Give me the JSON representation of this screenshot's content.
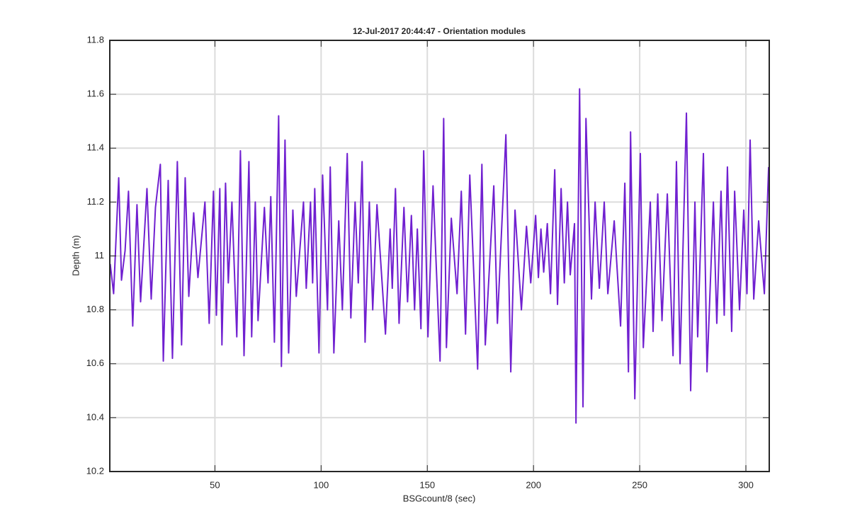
{
  "chart_data": {
    "type": "line",
    "title": "12-Jul-2017 20:44:47 - Orientation modules",
    "x_label": "BSGcount/8 (sec)",
    "y_label": "Depth (m)",
    "color": "#7020d0",
    "grid": true,
    "xlim": [
      0.5,
      311
    ],
    "ylim": [
      10.2,
      11.8
    ],
    "xticks": [
      50,
      100,
      150,
      200,
      250,
      300
    ],
    "yticks": [
      10.2,
      10.4,
      10.6,
      10.8,
      11,
      11.2,
      11.4,
      11.6,
      11.8
    ],
    "x": [
      0.7,
      2.3,
      4.7,
      6,
      7.7,
      9.3,
      11.3,
      13.3,
      15,
      18,
      20,
      22,
      24.3,
      25.7,
      28,
      30,
      32.3,
      34.3,
      36,
      37.7,
      40,
      42,
      45.3,
      47.3,
      49.3,
      50.7,
      52.3,
      53.3,
      55,
      56.3,
      58,
      60.3,
      62,
      63.7,
      66,
      67.3,
      69,
      70.3,
      73.3,
      75,
      76.3,
      78,
      80,
      81.3,
      83,
      84.7,
      86.7,
      88.3,
      91.7,
      93,
      95,
      96,
      97,
      99,
      100.7,
      103,
      104.3,
      106,
      108.3,
      110,
      112.3,
      114,
      116,
      117.5,
      119.3,
      120.7,
      122.7,
      124.3,
      126.3,
      130.3,
      132.5,
      133.5,
      135,
      136.7,
      139,
      140.7,
      142.5,
      144,
      145.3,
      147,
      148.3,
      150.3,
      152.7,
      156,
      157.7,
      159,
      161.3,
      164,
      166,
      168,
      170,
      173.7,
      175.7,
      177.3,
      181.3,
      183,
      187,
      189.3,
      191.3,
      194.3,
      196.7,
      198.7,
      201,
      202.3,
      203.5,
      204.8,
      206.5,
      208,
      210,
      211.3,
      213,
      214.5,
      216,
      217.3,
      219.3,
      220,
      221.7,
      223.3,
      224.7,
      227.3,
      229,
      231,
      233.3,
      235,
      238,
      241,
      243,
      244.7,
      245.7,
      247.7,
      250.3,
      251.7,
      255,
      256.3,
      258.5,
      260.5,
      263,
      265.7,
      267.3,
      269,
      272,
      274,
      276,
      277.3,
      280,
      281.7,
      284.7,
      286.3,
      288.3,
      289.8,
      291.3,
      293.3,
      294.7,
      297,
      299,
      300.5,
      302,
      303.7,
      306,
      308.7,
      310.7
    ],
    "values": [
      10.97,
      10.86,
      11.29,
      10.91,
      11.02,
      11.24,
      10.74,
      11.19,
      10.83,
      11.25,
      10.84,
      11.18,
      11.34,
      10.61,
      11.28,
      10.62,
      11.35,
      10.67,
      11.29,
      10.85,
      11.16,
      10.92,
      11.2,
      10.75,
      11.24,
      10.78,
      11.25,
      10.67,
      11.27,
      10.9,
      11.2,
      10.7,
      11.39,
      10.63,
      11.35,
      10.7,
      11.2,
      10.76,
      11.18,
      10.9,
      11.22,
      10.68,
      11.52,
      10.59,
      11.43,
      10.64,
      11.17,
      10.85,
      11.2,
      10.88,
      11.2,
      10.9,
      11.25,
      10.64,
      11.3,
      10.8,
      11.33,
      10.64,
      11.13,
      10.8,
      11.38,
      10.77,
      11.2,
      10.9,
      11.35,
      10.68,
      11.2,
      10.8,
      11.19,
      10.71,
      11.1,
      10.88,
      11.25,
      10.75,
      11.18,
      10.83,
      11.15,
      10.8,
      11.1,
      10.73,
      11.39,
      10.7,
      11.26,
      10.61,
      11.51,
      10.66,
      11.14,
      10.86,
      11.24,
      10.71,
      11.3,
      10.58,
      11.34,
      10.67,
      11.26,
      10.75,
      11.45,
      10.57,
      11.17,
      10.8,
      11.11,
      10.9,
      11.15,
      10.92,
      11.1,
      10.94,
      11.12,
      10.86,
      11.32,
      10.82,
      11.25,
      10.9,
      11.2,
      10.93,
      11.12,
      10.38,
      11.62,
      10.44,
      11.51,
      10.84,
      11.2,
      10.88,
      11.2,
      10.86,
      11.13,
      10.74,
      11.27,
      10.57,
      11.46,
      10.47,
      11.38,
      10.66,
      11.2,
      10.72,
      11.23,
      10.76,
      11.23,
      10.63,
      11.35,
      10.6,
      11.53,
      10.5,
      11.2,
      10.7,
      11.38,
      10.57,
      11.2,
      10.75,
      11.24,
      10.78,
      11.33,
      10.72,
      11.24,
      10.8,
      11.17,
      10.86,
      11.43,
      10.84,
      11.13,
      10.86,
      11.33
    ]
  }
}
